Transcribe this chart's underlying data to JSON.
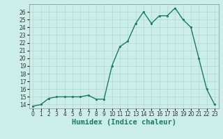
{
  "x": [
    0,
    1,
    2,
    3,
    4,
    5,
    6,
    7,
    8,
    9,
    10,
    11,
    12,
    13,
    14,
    15,
    16,
    17,
    18,
    19,
    20,
    21,
    22,
    23
  ],
  "y": [
    13.8,
    14.0,
    14.8,
    15.0,
    15.0,
    15.0,
    15.0,
    15.2,
    14.7,
    14.7,
    19.0,
    21.5,
    22.2,
    24.5,
    26.0,
    24.5,
    25.5,
    25.5,
    26.5,
    25.0,
    24.0,
    20.0,
    16.0,
    14.0
  ],
  "line_color": "#1a7a64",
  "marker": ".",
  "xlabel": "Humidex (Indice chaleur)",
  "xlim": [
    -0.5,
    23.5
  ],
  "ylim": [
    13.5,
    27.0
  ],
  "yticks": [
    14,
    15,
    16,
    17,
    18,
    19,
    20,
    21,
    22,
    23,
    24,
    25,
    26
  ],
  "xticks": [
    0,
    1,
    2,
    3,
    4,
    5,
    6,
    7,
    8,
    9,
    10,
    11,
    12,
    13,
    14,
    15,
    16,
    17,
    18,
    19,
    20,
    21,
    22,
    23
  ],
  "xtick_labels": [
    "0",
    "1",
    "2",
    "3",
    "4",
    "5",
    "6",
    "7",
    "8",
    "9",
    "10",
    "11",
    "12",
    "13",
    "14",
    "15",
    "16",
    "17",
    "18",
    "19",
    "20",
    "21",
    "22",
    "23"
  ],
  "background_color": "#cceee8",
  "grid_color": "#b0d8d0",
  "tick_fontsize": 5.5,
  "xlabel_fontsize": 7.5,
  "linewidth": 1.0,
  "markersize": 2.5
}
